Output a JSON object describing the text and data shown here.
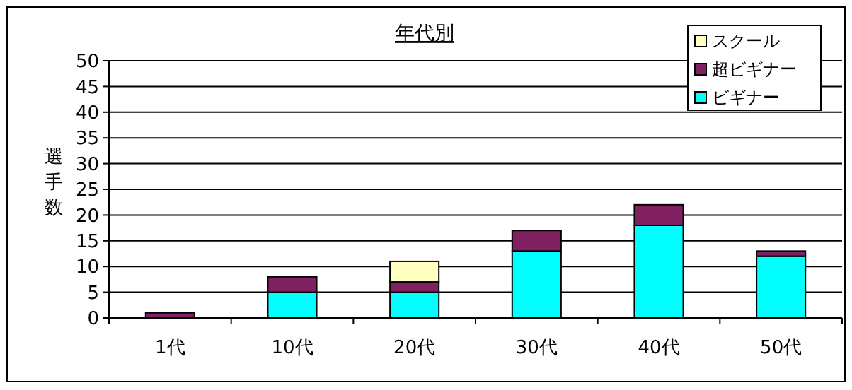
{
  "chart_data": {
    "type": "bar",
    "title": "年代別",
    "ylabel": "選手数",
    "categories": [
      "1代",
      "10代",
      "20代",
      "30代",
      "40代",
      "50代"
    ],
    "stacked": true,
    "series": [
      {
        "name": "ビギナー",
        "color": "#00ffff",
        "values": [
          0,
          5,
          5,
          13,
          18,
          12
        ]
      },
      {
        "name": "超ビギナー",
        "color": "#802060",
        "values": [
          1,
          3,
          2,
          4,
          4,
          1
        ]
      },
      {
        "name": "スクール",
        "color": "#ffffc0",
        "values": [
          0,
          0,
          4,
          0,
          0,
          0
        ]
      }
    ],
    "ylim": [
      0,
      50
    ],
    "yticks": [
      0,
      5,
      10,
      15,
      20,
      25,
      30,
      35,
      40,
      45,
      50
    ],
    "grid": "y",
    "legend": "top right"
  }
}
